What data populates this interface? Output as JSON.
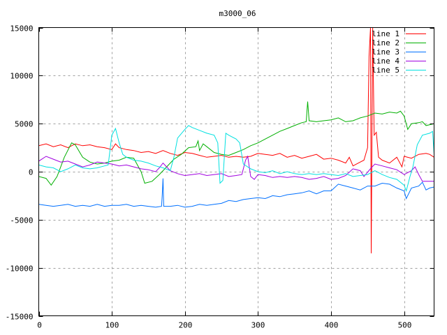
{
  "chart_data": {
    "type": "line",
    "title": "m3000_06",
    "xlabel": "",
    "ylabel": "",
    "xlim": [
      0,
      541
    ],
    "ylim": [
      -15000,
      15000
    ],
    "xticks": [
      0,
      100,
      200,
      300,
      400,
      500
    ],
    "yticks": [
      -15000,
      -10000,
      -5000,
      0,
      5000,
      10000,
      15000
    ],
    "grid": true,
    "legend": "top-right",
    "series": [
      {
        "name": "line 1",
        "color": "#ff0000",
        "points": [
          [
            0,
            2700
          ],
          [
            10,
            2900
          ],
          [
            20,
            2600
          ],
          [
            30,
            2800
          ],
          [
            40,
            2500
          ],
          [
            50,
            2900
          ],
          [
            60,
            2700
          ],
          [
            70,
            2800
          ],
          [
            80,
            2600
          ],
          [
            90,
            2500
          ],
          [
            100,
            2300
          ],
          [
            105,
            2900
          ],
          [
            110,
            2500
          ],
          [
            120,
            2300
          ],
          [
            130,
            2200
          ],
          [
            140,
            2000
          ],
          [
            150,
            2100
          ],
          [
            160,
            1900
          ],
          [
            170,
            2200
          ],
          [
            180,
            1900
          ],
          [
            190,
            1700
          ],
          [
            200,
            2000
          ],
          [
            210,
            1900
          ],
          [
            220,
            1700
          ],
          [
            230,
            1500
          ],
          [
            240,
            1600
          ],
          [
            250,
            1700
          ],
          [
            260,
            1500
          ],
          [
            270,
            1600
          ],
          [
            280,
            1500
          ],
          [
            290,
            1600
          ],
          [
            300,
            1900
          ],
          [
            310,
            1800
          ],
          [
            320,
            1700
          ],
          [
            330,
            1900
          ],
          [
            340,
            1500
          ],
          [
            350,
            1700
          ],
          [
            360,
            1400
          ],
          [
            370,
            1600
          ],
          [
            380,
            1800
          ],
          [
            390,
            1300
          ],
          [
            400,
            1400
          ],
          [
            410,
            1200
          ],
          [
            420,
            900
          ],
          [
            425,
            1500
          ],
          [
            430,
            600
          ],
          [
            440,
            1000
          ],
          [
            445,
            1200
          ],
          [
            450,
            2500
          ],
          [
            452,
            12000
          ],
          [
            454,
            15000
          ],
          [
            455,
            -8500
          ],
          [
            457,
            15000
          ],
          [
            459,
            3800
          ],
          [
            462,
            4100
          ],
          [
            465,
            1500
          ],
          [
            470,
            1200
          ],
          [
            480,
            900
          ],
          [
            490,
            1500
          ],
          [
            497,
            500
          ],
          [
            500,
            1600
          ],
          [
            510,
            1400
          ],
          [
            520,
            1800
          ],
          [
            530,
            1900
          ],
          [
            535,
            1800
          ],
          [
            541,
            1500
          ]
        ]
      },
      {
        "name": "line 2",
        "color": "#00b000",
        "points": [
          [
            0,
            -500
          ],
          [
            10,
            -700
          ],
          [
            17,
            -1400
          ],
          [
            25,
            -500
          ],
          [
            35,
            1500
          ],
          [
            45,
            3000
          ],
          [
            50,
            2800
          ],
          [
            60,
            1500
          ],
          [
            70,
            1000
          ],
          [
            80,
            800
          ],
          [
            90,
            900
          ],
          [
            100,
            1100
          ],
          [
            110,
            1200
          ],
          [
            120,
            1500
          ],
          [
            130,
            1400
          ],
          [
            140,
            0
          ],
          [
            145,
            -1200
          ],
          [
            155,
            -1000
          ],
          [
            165,
            -300
          ],
          [
            175,
            500
          ],
          [
            185,
            1300
          ],
          [
            195,
            1800
          ],
          [
            205,
            2500
          ],
          [
            215,
            2600
          ],
          [
            218,
            3200
          ],
          [
            220,
            2200
          ],
          [
            225,
            2900
          ],
          [
            230,
            2600
          ],
          [
            240,
            2000
          ],
          [
            250,
            1800
          ],
          [
            260,
            1700
          ],
          [
            270,
            2000
          ],
          [
            280,
            2300
          ],
          [
            290,
            2700
          ],
          [
            300,
            3000
          ],
          [
            310,
            3400
          ],
          [
            320,
            3800
          ],
          [
            330,
            4200
          ],
          [
            340,
            4500
          ],
          [
            350,
            4800
          ],
          [
            360,
            5100
          ],
          [
            366,
            5200
          ],
          [
            368,
            7300
          ],
          [
            370,
            5300
          ],
          [
            380,
            5200
          ],
          [
            390,
            5300
          ],
          [
            400,
            5400
          ],
          [
            410,
            5600
          ],
          [
            420,
            5200
          ],
          [
            430,
            5300
          ],
          [
            440,
            5600
          ],
          [
            450,
            5800
          ],
          [
            460,
            6100
          ],
          [
            470,
            6000
          ],
          [
            480,
            6200
          ],
          [
            490,
            6100
          ],
          [
            495,
            6300
          ],
          [
            500,
            5800
          ],
          [
            505,
            4400
          ],
          [
            510,
            5000
          ],
          [
            520,
            5100
          ],
          [
            525,
            5200
          ],
          [
            530,
            4800
          ],
          [
            541,
            5000
          ]
        ]
      },
      {
        "name": "line 3",
        "color": "#0070ff",
        "points": [
          [
            0,
            -3400
          ],
          [
            10,
            -3500
          ],
          [
            20,
            -3600
          ],
          [
            30,
            -3500
          ],
          [
            40,
            -3400
          ],
          [
            50,
            -3600
          ],
          [
            60,
            -3500
          ],
          [
            70,
            -3600
          ],
          [
            80,
            -3400
          ],
          [
            90,
            -3600
          ],
          [
            100,
            -3500
          ],
          [
            110,
            -3500
          ],
          [
            120,
            -3400
          ],
          [
            130,
            -3600
          ],
          [
            140,
            -3500
          ],
          [
            150,
            -3600
          ],
          [
            160,
            -3700
          ],
          [
            168,
            -3600
          ],
          [
            169,
            -2400
          ],
          [
            170,
            -700
          ],
          [
            171,
            -3600
          ],
          [
            180,
            -3600
          ],
          [
            190,
            -3500
          ],
          [
            200,
            -3700
          ],
          [
            210,
            -3600
          ],
          [
            220,
            -3400
          ],
          [
            230,
            -3500
          ],
          [
            240,
            -3400
          ],
          [
            250,
            -3300
          ],
          [
            260,
            -3000
          ],
          [
            270,
            -3100
          ],
          [
            280,
            -2900
          ],
          [
            290,
            -2800
          ],
          [
            300,
            -2700
          ],
          [
            310,
            -2800
          ],
          [
            320,
            -2500
          ],
          [
            330,
            -2600
          ],
          [
            340,
            -2400
          ],
          [
            350,
            -2300
          ],
          [
            360,
            -2200
          ],
          [
            370,
            -2000
          ],
          [
            380,
            -2300
          ],
          [
            390,
            -2000
          ],
          [
            400,
            -2000
          ],
          [
            410,
            -1300
          ],
          [
            420,
            -1500
          ],
          [
            430,
            -1700
          ],
          [
            440,
            -1900
          ],
          [
            450,
            -1500
          ],
          [
            460,
            -1500
          ],
          [
            470,
            -1200
          ],
          [
            480,
            -1300
          ],
          [
            490,
            -1700
          ],
          [
            500,
            -2000
          ],
          [
            503,
            -2800
          ],
          [
            510,
            -1700
          ],
          [
            520,
            -1500
          ],
          [
            525,
            -1100
          ],
          [
            530,
            -1900
          ],
          [
            535,
            -1700
          ],
          [
            541,
            -1600
          ]
        ]
      },
      {
        "name": "line 4",
        "color": "#a000e0",
        "points": [
          [
            0,
            1100
          ],
          [
            10,
            1600
          ],
          [
            20,
            1300
          ],
          [
            30,
            1000
          ],
          [
            40,
            1100
          ],
          [
            50,
            800
          ],
          [
            60,
            500
          ],
          [
            70,
            700
          ],
          [
            80,
            1000
          ],
          [
            90,
            900
          ],
          [
            100,
            800
          ],
          [
            110,
            600
          ],
          [
            120,
            700
          ],
          [
            130,
            500
          ],
          [
            140,
            300
          ],
          [
            150,
            200
          ],
          [
            160,
            0
          ],
          [
            165,
            400
          ],
          [
            170,
            900
          ],
          [
            175,
            500
          ],
          [
            180,
            100
          ],
          [
            190,
            -200
          ],
          [
            200,
            -400
          ],
          [
            210,
            -300
          ],
          [
            220,
            -200
          ],
          [
            230,
            -400
          ],
          [
            240,
            -300
          ],
          [
            250,
            -200
          ],
          [
            260,
            -500
          ],
          [
            270,
            -400
          ],
          [
            278,
            -300
          ],
          [
            283,
            1200
          ],
          [
            286,
            1600
          ],
          [
            290,
            -500
          ],
          [
            295,
            -800
          ],
          [
            300,
            -300
          ],
          [
            310,
            -400
          ],
          [
            320,
            -600
          ],
          [
            330,
            -500
          ],
          [
            340,
            -600
          ],
          [
            350,
            -500
          ],
          [
            360,
            -600
          ],
          [
            370,
            -800
          ],
          [
            380,
            -700
          ],
          [
            390,
            -500
          ],
          [
            400,
            -800
          ],
          [
            410,
            -700
          ],
          [
            420,
            -400
          ],
          [
            430,
            300
          ],
          [
            440,
            100
          ],
          [
            445,
            -500
          ],
          [
            455,
            400
          ],
          [
            460,
            800
          ],
          [
            470,
            600
          ],
          [
            480,
            400
          ],
          [
            490,
            200
          ],
          [
            500,
            -300
          ],
          [
            510,
            100
          ],
          [
            515,
            500
          ],
          [
            520,
            -300
          ],
          [
            525,
            -1000
          ],
          [
            530,
            -1000
          ],
          [
            541,
            -1000
          ]
        ]
      },
      {
        "name": "line 5",
        "color": "#00e0e0",
        "points": [
          [
            0,
            700
          ],
          [
            10,
            500
          ],
          [
            20,
            400
          ],
          [
            30,
            0
          ],
          [
            40,
            300
          ],
          [
            50,
            700
          ],
          [
            60,
            400
          ],
          [
            70,
            300
          ],
          [
            80,
            400
          ],
          [
            90,
            600
          ],
          [
            95,
            700
          ],
          [
            100,
            3800
          ],
          [
            105,
            4500
          ],
          [
            110,
            3000
          ],
          [
            115,
            1800
          ],
          [
            120,
            1500
          ],
          [
            130,
            1200
          ],
          [
            140,
            1100
          ],
          [
            150,
            900
          ],
          [
            160,
            600
          ],
          [
            170,
            400
          ],
          [
            180,
            100
          ],
          [
            185,
            1500
          ],
          [
            190,
            3500
          ],
          [
            200,
            4400
          ],
          [
            205,
            4800
          ],
          [
            210,
            4600
          ],
          [
            220,
            4300
          ],
          [
            230,
            4000
          ],
          [
            240,
            3800
          ],
          [
            245,
            3000
          ],
          [
            248,
            -1200
          ],
          [
            252,
            -900
          ],
          [
            256,
            4000
          ],
          [
            260,
            3800
          ],
          [
            270,
            3400
          ],
          [
            275,
            3000
          ],
          [
            280,
            800
          ],
          [
            290,
            300
          ],
          [
            300,
            0
          ],
          [
            310,
            -100
          ],
          [
            320,
            100
          ],
          [
            330,
            -200
          ],
          [
            340,
            0
          ],
          [
            350,
            -200
          ],
          [
            360,
            -300
          ],
          [
            370,
            -200
          ],
          [
            380,
            -300
          ],
          [
            390,
            -200
          ],
          [
            400,
            -300
          ],
          [
            410,
            -400
          ],
          [
            420,
            -200
          ],
          [
            430,
            -500
          ],
          [
            440,
            -400
          ],
          [
            450,
            -300
          ],
          [
            460,
            100
          ],
          [
            470,
            -300
          ],
          [
            480,
            -600
          ],
          [
            490,
            -800
          ],
          [
            500,
            -1400
          ],
          [
            503,
            -2000
          ],
          [
            508,
            -500
          ],
          [
            512,
            500
          ],
          [
            518,
            2800
          ],
          [
            525,
            3800
          ],
          [
            535,
            4000
          ],
          [
            539,
            4200
          ],
          [
            541,
            1800
          ]
        ]
      }
    ]
  }
}
